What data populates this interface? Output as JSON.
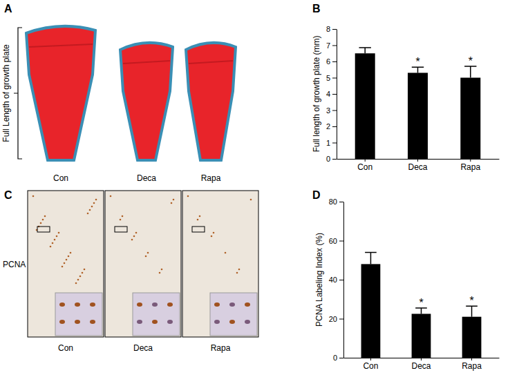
{
  "chart_data": [
    {
      "type": "bar",
      "panel": "B",
      "y_label": "Full length of growth plate (mm)",
      "categories": [
        "Con",
        "Deca",
        "Rapa"
      ],
      "values": [
        6.5,
        5.3,
        5.0
      ],
      "errors": [
        0.35,
        0.35,
        0.7
      ],
      "significance": [
        null,
        "*",
        "*"
      ],
      "color": "#000000",
      "ylim": [
        0,
        8
      ],
      "yticks": [
        0,
        1,
        2,
        3,
        4,
        5,
        6,
        7,
        8
      ],
      "grid": false
    },
    {
      "type": "bar",
      "panel": "D",
      "y_label": "PCNA Labeling Index (%)",
      "categories": [
        "Con",
        "Deca",
        "Rapa"
      ],
      "values": [
        48,
        22.5,
        21
      ],
      "errors": [
        6,
        3,
        5.5
      ],
      "significance": [
        null,
        "*",
        "*"
      ],
      "color": "#000000",
      "ylim": [
        0,
        80
      ],
      "yticks": [
        0,
        20,
        40,
        60,
        80
      ],
      "grid": false
    }
  ],
  "images": [
    {
      "panel": "A",
      "label": "Full Length of growth plate",
      "captions": [
        "Con",
        "Deca",
        "Rapa"
      ]
    },
    {
      "panel": "C",
      "label": "PCNA",
      "captions": [
        "Con",
        "Deca",
        "Rapa"
      ]
    }
  ]
}
